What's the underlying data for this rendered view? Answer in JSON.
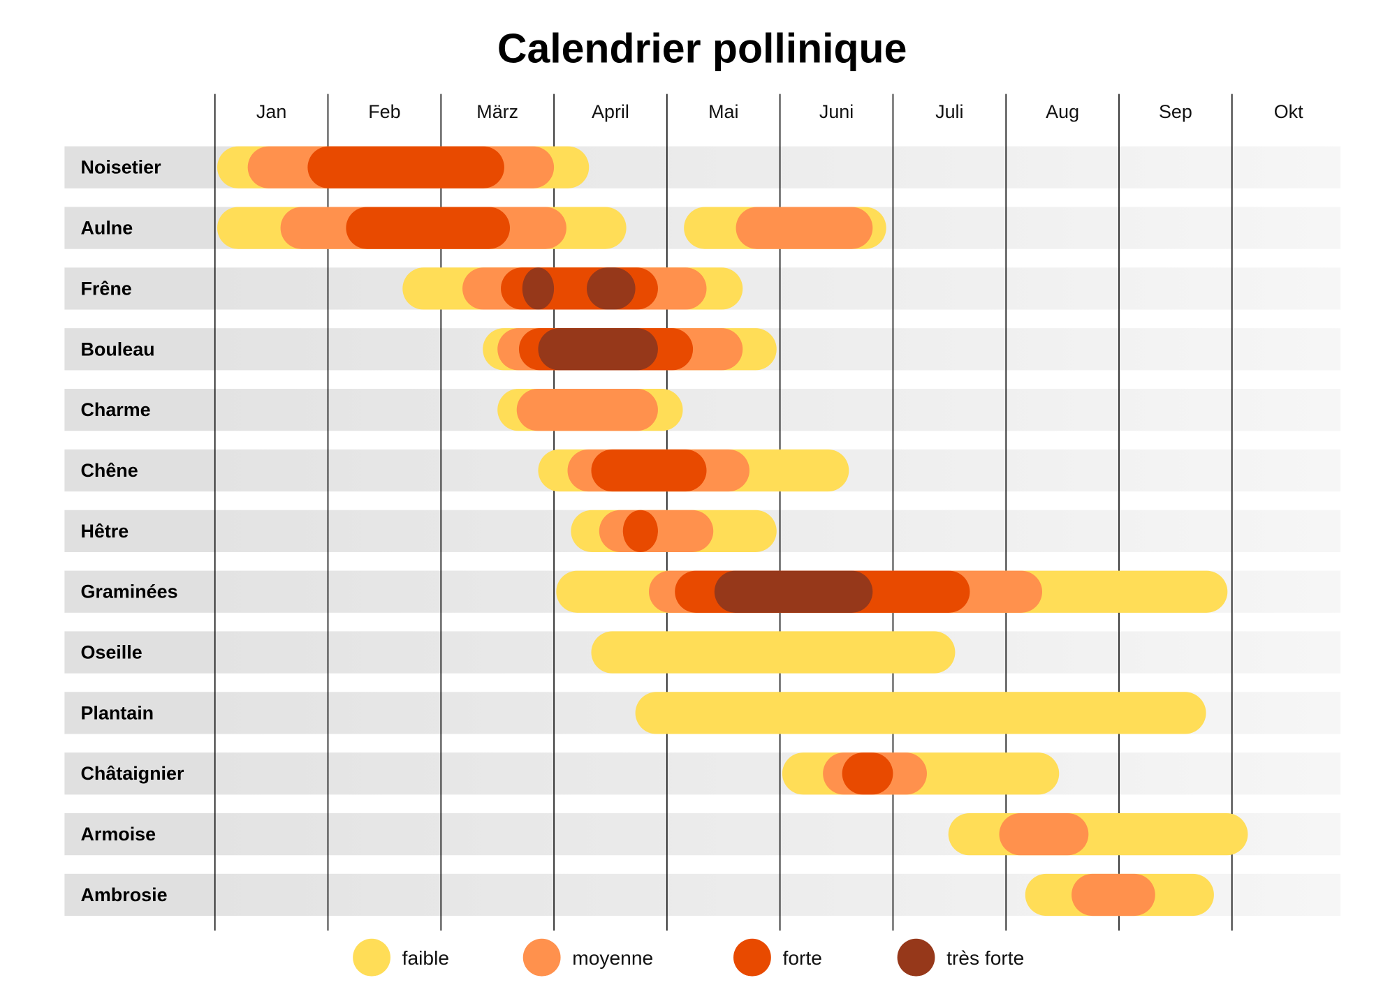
{
  "chart_data": {
    "type": "gantt",
    "title": "Calendrier pollinique",
    "months": [
      "Jan",
      "Feb",
      "März",
      "April",
      "Mai",
      "Juni",
      "Juli",
      "Aug",
      "Sep",
      "Okt"
    ],
    "unit": "months from start of January",
    "levels": [
      {
        "key": "faible",
        "label": "faible",
        "color": "#FFDD57"
      },
      {
        "key": "moyenne",
        "label": "moyenne",
        "color": "#FF914D"
      },
      {
        "key": "forte",
        "label": "forte",
        "color": "#E84A00"
      },
      {
        "key": "tres_forte",
        "label": "très forte",
        "color": "#96381A"
      }
    ],
    "rows": [
      {
        "name": "Noisetier",
        "bars": [
          [
            "faible",
            0.02,
            3.31
          ],
          [
            "moyenne",
            0.29,
            3.0
          ],
          [
            "forte",
            0.82,
            2.56
          ]
        ]
      },
      {
        "name": "Aulne",
        "bars": [
          [
            "faible",
            0.02,
            3.64
          ],
          [
            "moyenne",
            0.58,
            3.11
          ],
          [
            "forte",
            1.16,
            2.61
          ],
          [
            "faible",
            4.15,
            5.94
          ],
          [
            "moyenne",
            4.61,
            5.82
          ]
        ]
      },
      {
        "name": "Frêne",
        "bars": [
          [
            "faible",
            1.66,
            4.67
          ],
          [
            "moyenne",
            2.19,
            4.35
          ],
          [
            "forte",
            2.53,
            3.92
          ],
          [
            "tres_forte",
            2.72,
            3.0
          ],
          [
            "tres_forte",
            3.29,
            3.72
          ]
        ]
      },
      {
        "name": "Bouleau",
        "bars": [
          [
            "faible",
            2.37,
            4.97
          ],
          [
            "moyenne",
            2.5,
            4.67
          ],
          [
            "forte",
            2.69,
            4.23
          ],
          [
            "tres_forte",
            2.86,
            3.92
          ]
        ]
      },
      {
        "name": "Charme",
        "bars": [
          [
            "faible",
            2.5,
            4.14
          ],
          [
            "moyenne",
            2.67,
            3.92
          ]
        ]
      },
      {
        "name": "Chêne",
        "bars": [
          [
            "faible",
            2.86,
            5.61
          ],
          [
            "moyenne",
            3.12,
            4.73
          ],
          [
            "forte",
            3.33,
            4.35
          ]
        ]
      },
      {
        "name": "Hêtre",
        "bars": [
          [
            "faible",
            3.15,
            4.97
          ],
          [
            "moyenne",
            3.4,
            4.41
          ],
          [
            "forte",
            3.61,
            3.92
          ]
        ]
      },
      {
        "name": "Graminées",
        "bars": [
          [
            "faible",
            3.02,
            8.96
          ],
          [
            "moyenne",
            3.84,
            7.32
          ],
          [
            "forte",
            4.07,
            6.68
          ],
          [
            "tres_forte",
            4.42,
            5.82
          ]
        ]
      },
      {
        "name": "Oseille",
        "bars": [
          [
            "faible",
            3.33,
            6.55
          ]
        ]
      },
      {
        "name": "Plantain",
        "bars": [
          [
            "faible",
            3.72,
            8.77
          ]
        ]
      },
      {
        "name": "Châtaignier",
        "bars": [
          [
            "faible",
            5.02,
            7.47
          ],
          [
            "moyenne",
            5.38,
            6.3
          ],
          [
            "forte",
            5.55,
            6.0
          ]
        ]
      },
      {
        "name": "Armoise",
        "bars": [
          [
            "faible",
            6.49,
            9.14
          ],
          [
            "moyenne",
            6.94,
            7.73
          ]
        ]
      },
      {
        "name": "Ambrosie",
        "bars": [
          [
            "faible",
            7.17,
            8.84
          ],
          [
            "moyenne",
            7.58,
            8.32
          ]
        ]
      }
    ],
    "legend_position": "bottom",
    "grid": "vertical month lines"
  }
}
